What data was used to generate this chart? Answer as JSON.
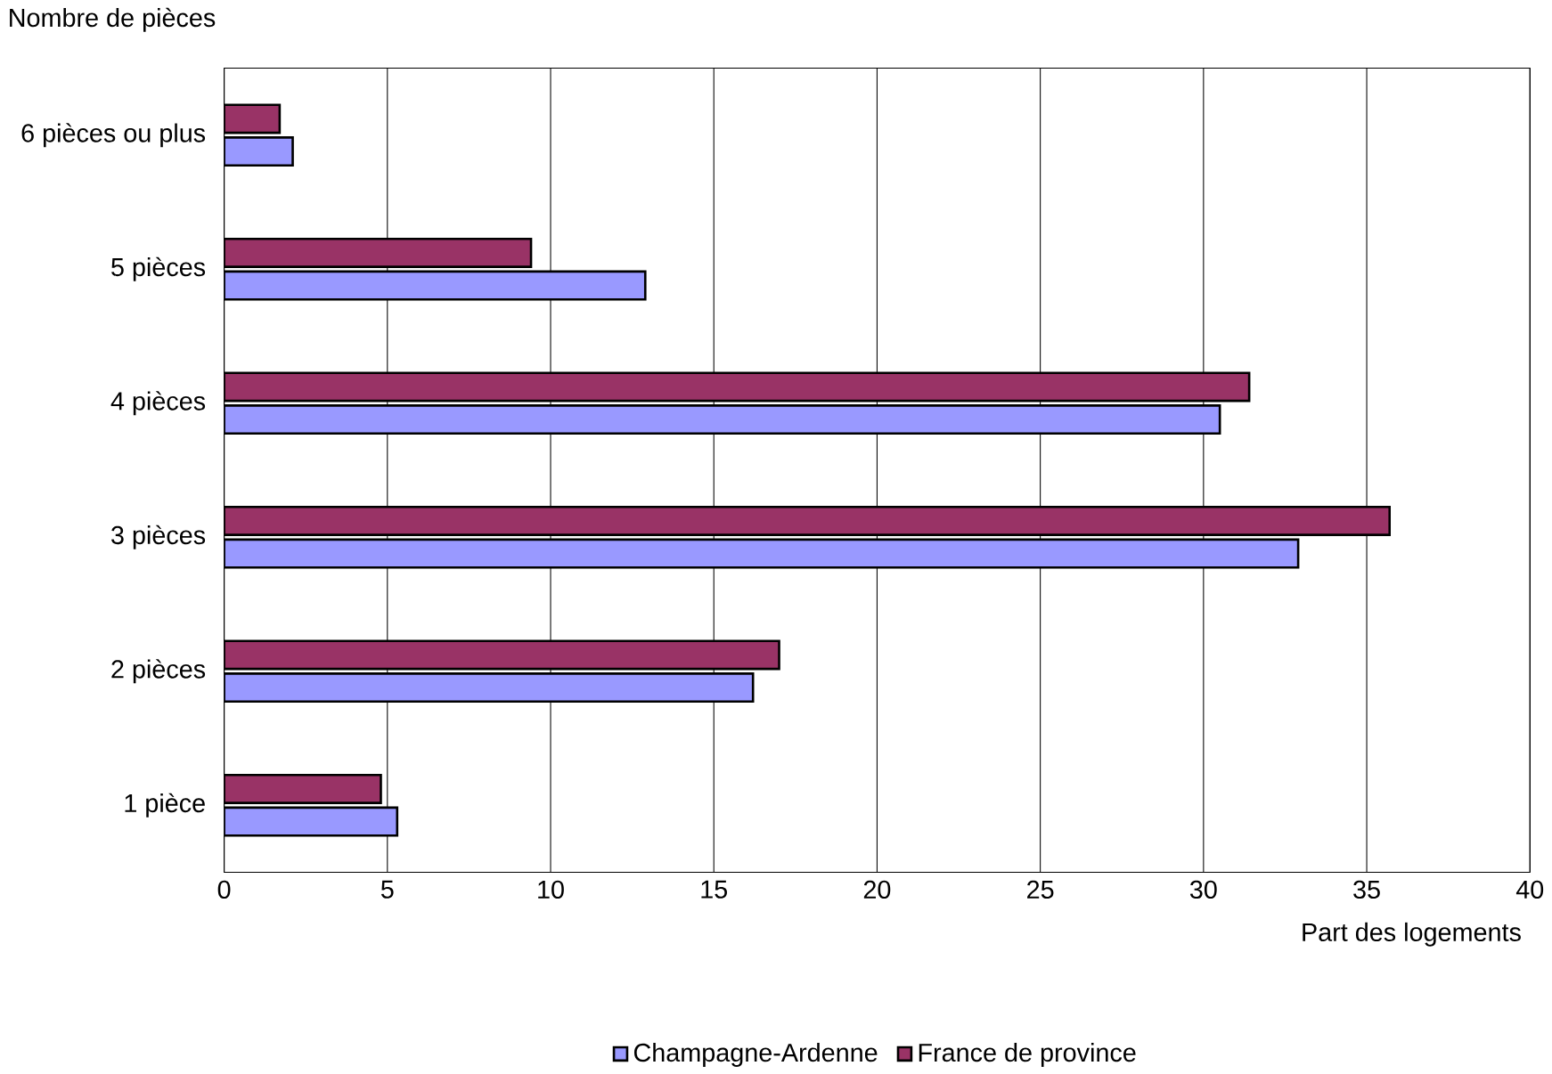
{
  "chart_data": {
    "type": "bar",
    "orientation": "horizontal",
    "xlabel": "Part des logements",
    "ylabel": "Nombre de pièces",
    "categories": [
      "6 pièces ou plus",
      "5 pièces",
      "4 pièces",
      "3 pièces",
      "2 pièces",
      "1 pièce"
    ],
    "series": [
      {
        "name": "Champagne-Ardenne",
        "color": "#9999ff",
        "values": [
          2.1,
          12.9,
          30.5,
          32.9,
          16.2,
          5.3
        ]
      },
      {
        "name": "France de province",
        "color": "#993366",
        "values": [
          1.7,
          9.4,
          31.4,
          35.7,
          17.0,
          4.8
        ]
      }
    ],
    "xlim": [
      0,
      40
    ],
    "xticks": [
      0,
      5,
      10,
      15,
      20,
      25,
      30,
      35,
      40
    ],
    "grid": "x",
    "legend": "bottom"
  }
}
